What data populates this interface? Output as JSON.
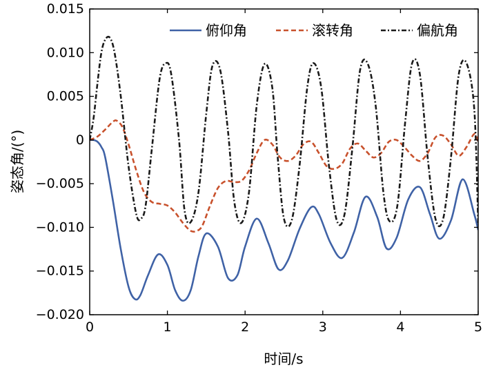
{
  "chart_data": {
    "type": "line",
    "xlabel": "时间/s",
    "ylabel": "姿态角/(°)",
    "xlim": [
      0,
      5
    ],
    "ylim": [
      -0.02,
      0.015
    ],
    "x_ticks": [
      "0",
      "1",
      "2",
      "3",
      "4",
      "5"
    ],
    "y_ticks": [
      "0.015",
      "0.010",
      "0.005",
      "0",
      "−0.005",
      "−0.010",
      "−0.015",
      "−0.020"
    ],
    "grid": false,
    "legend_position": "top-right",
    "series": [
      {
        "name": "俯仰角",
        "color": "#3f62a6",
        "dash": "solid",
        "x": [
          0,
          0.05,
          0.1,
          0.15,
          0.2,
          0.3,
          0.4,
          0.5,
          0.58,
          0.65,
          0.75,
          0.88,
          1.0,
          1.1,
          1.2,
          1.3,
          1.4,
          1.5,
          1.65,
          1.78,
          1.9,
          2.0,
          2.15,
          2.3,
          2.43,
          2.55,
          2.7,
          2.85,
          2.95,
          3.1,
          3.25,
          3.4,
          3.55,
          3.7,
          3.82,
          3.95,
          4.1,
          4.25,
          4.38,
          4.5,
          4.65,
          4.8,
          4.95,
          5.0
        ],
        "y": [
          0,
          0,
          -0.0002,
          -0.0008,
          -0.002,
          -0.007,
          -0.0125,
          -0.0168,
          -0.0182,
          -0.0178,
          -0.0155,
          -0.0131,
          -0.0143,
          -0.0172,
          -0.0184,
          -0.0172,
          -0.0133,
          -0.0107,
          -0.0122,
          -0.0158,
          -0.0155,
          -0.0122,
          -0.009,
          -0.0118,
          -0.0148,
          -0.0138,
          -0.0102,
          -0.0077,
          -0.0085,
          -0.0118,
          -0.0135,
          -0.0106,
          -0.0065,
          -0.0088,
          -0.0124,
          -0.0112,
          -0.0068,
          -0.0054,
          -0.0085,
          -0.0113,
          -0.0092,
          -0.0045,
          -0.0085,
          -0.0103
        ]
      },
      {
        "name": "滚转角",
        "color": "#c8512c",
        "dash": "dashed",
        "x": [
          0,
          0.1,
          0.2,
          0.3,
          0.35,
          0.42,
          0.5,
          0.6,
          0.7,
          0.8,
          0.9,
          1.0,
          1.1,
          1.2,
          1.3,
          1.38,
          1.45,
          1.55,
          1.65,
          1.75,
          1.85,
          1.95,
          2.05,
          2.15,
          2.25,
          2.35,
          2.45,
          2.55,
          2.65,
          2.75,
          2.85,
          2.95,
          3.05,
          3.15,
          3.25,
          3.35,
          3.45,
          3.55,
          3.65,
          3.75,
          3.85,
          3.95,
          4.05,
          4.15,
          4.25,
          4.35,
          4.45,
          4.55,
          4.65,
          4.75,
          4.85,
          4.95,
          5.0
        ],
        "y": [
          0,
          0.0004,
          0.0012,
          0.0021,
          0.0022,
          0.0015,
          -0.0005,
          -0.0035,
          -0.006,
          -0.0071,
          -0.0073,
          -0.0075,
          -0.0083,
          -0.0095,
          -0.0104,
          -0.0104,
          -0.0098,
          -0.0075,
          -0.0055,
          -0.0047,
          -0.0048,
          -0.0047,
          -0.0035,
          -0.0015,
          0.0,
          -0.0005,
          -0.002,
          -0.0024,
          -0.0018,
          -0.0005,
          -0.0002,
          -0.0015,
          -0.003,
          -0.0033,
          -0.0027,
          -0.001,
          -0.0004,
          -0.0012,
          -0.002,
          -0.0015,
          -0.0002,
          0.0,
          -0.0008,
          -0.0018,
          -0.0024,
          -0.0015,
          0.0003,
          0.0005,
          -0.0005,
          -0.0018,
          -0.0008,
          0.0007,
          -0.0002
        ]
      },
      {
        "name": "偏航角",
        "color": "#1a1a1a",
        "dash": "dashdot",
        "x": [
          0,
          0.05,
          0.1,
          0.15,
          0.2,
          0.26,
          0.32,
          0.4,
          0.5,
          0.6,
          0.66,
          0.72,
          0.8,
          0.9,
          0.98,
          1.05,
          1.15,
          1.22,
          1.3,
          1.4,
          1.5,
          1.58,
          1.68,
          1.78,
          1.86,
          1.95,
          2.05,
          2.15,
          2.25,
          2.35,
          2.42,
          2.5,
          2.6,
          2.7,
          2.8,
          2.88,
          2.98,
          3.08,
          3.18,
          3.28,
          3.38,
          3.48,
          3.58,
          3.68,
          3.78,
          3.86,
          3.96,
          4.06,
          4.15,
          4.25,
          4.35,
          4.45,
          4.55,
          4.65,
          4.75,
          4.85,
          4.95,
          5.0
        ],
        "y": [
          0,
          0.0025,
          0.0065,
          0.01,
          0.0115,
          0.0117,
          0.01,
          0.005,
          -0.003,
          -0.0085,
          -0.009,
          -0.0075,
          -0.001,
          0.007,
          0.0088,
          0.0075,
          0.0,
          -0.008,
          -0.0094,
          -0.006,
          0.003,
          0.0085,
          0.008,
          0.001,
          -0.007,
          -0.0095,
          -0.006,
          0.004,
          0.0087,
          0.006,
          -0.002,
          -0.009,
          -0.0092,
          -0.003,
          0.006,
          0.0088,
          0.006,
          -0.003,
          -0.0092,
          -0.0085,
          -0.001,
          0.008,
          0.0087,
          0.004,
          -0.006,
          -0.0093,
          -0.0075,
          0.002,
          0.0088,
          0.0075,
          -0.002,
          -0.009,
          -0.009,
          -0.002,
          0.0075,
          0.0088,
          0.0035,
          -0.0095
        ]
      }
    ]
  }
}
